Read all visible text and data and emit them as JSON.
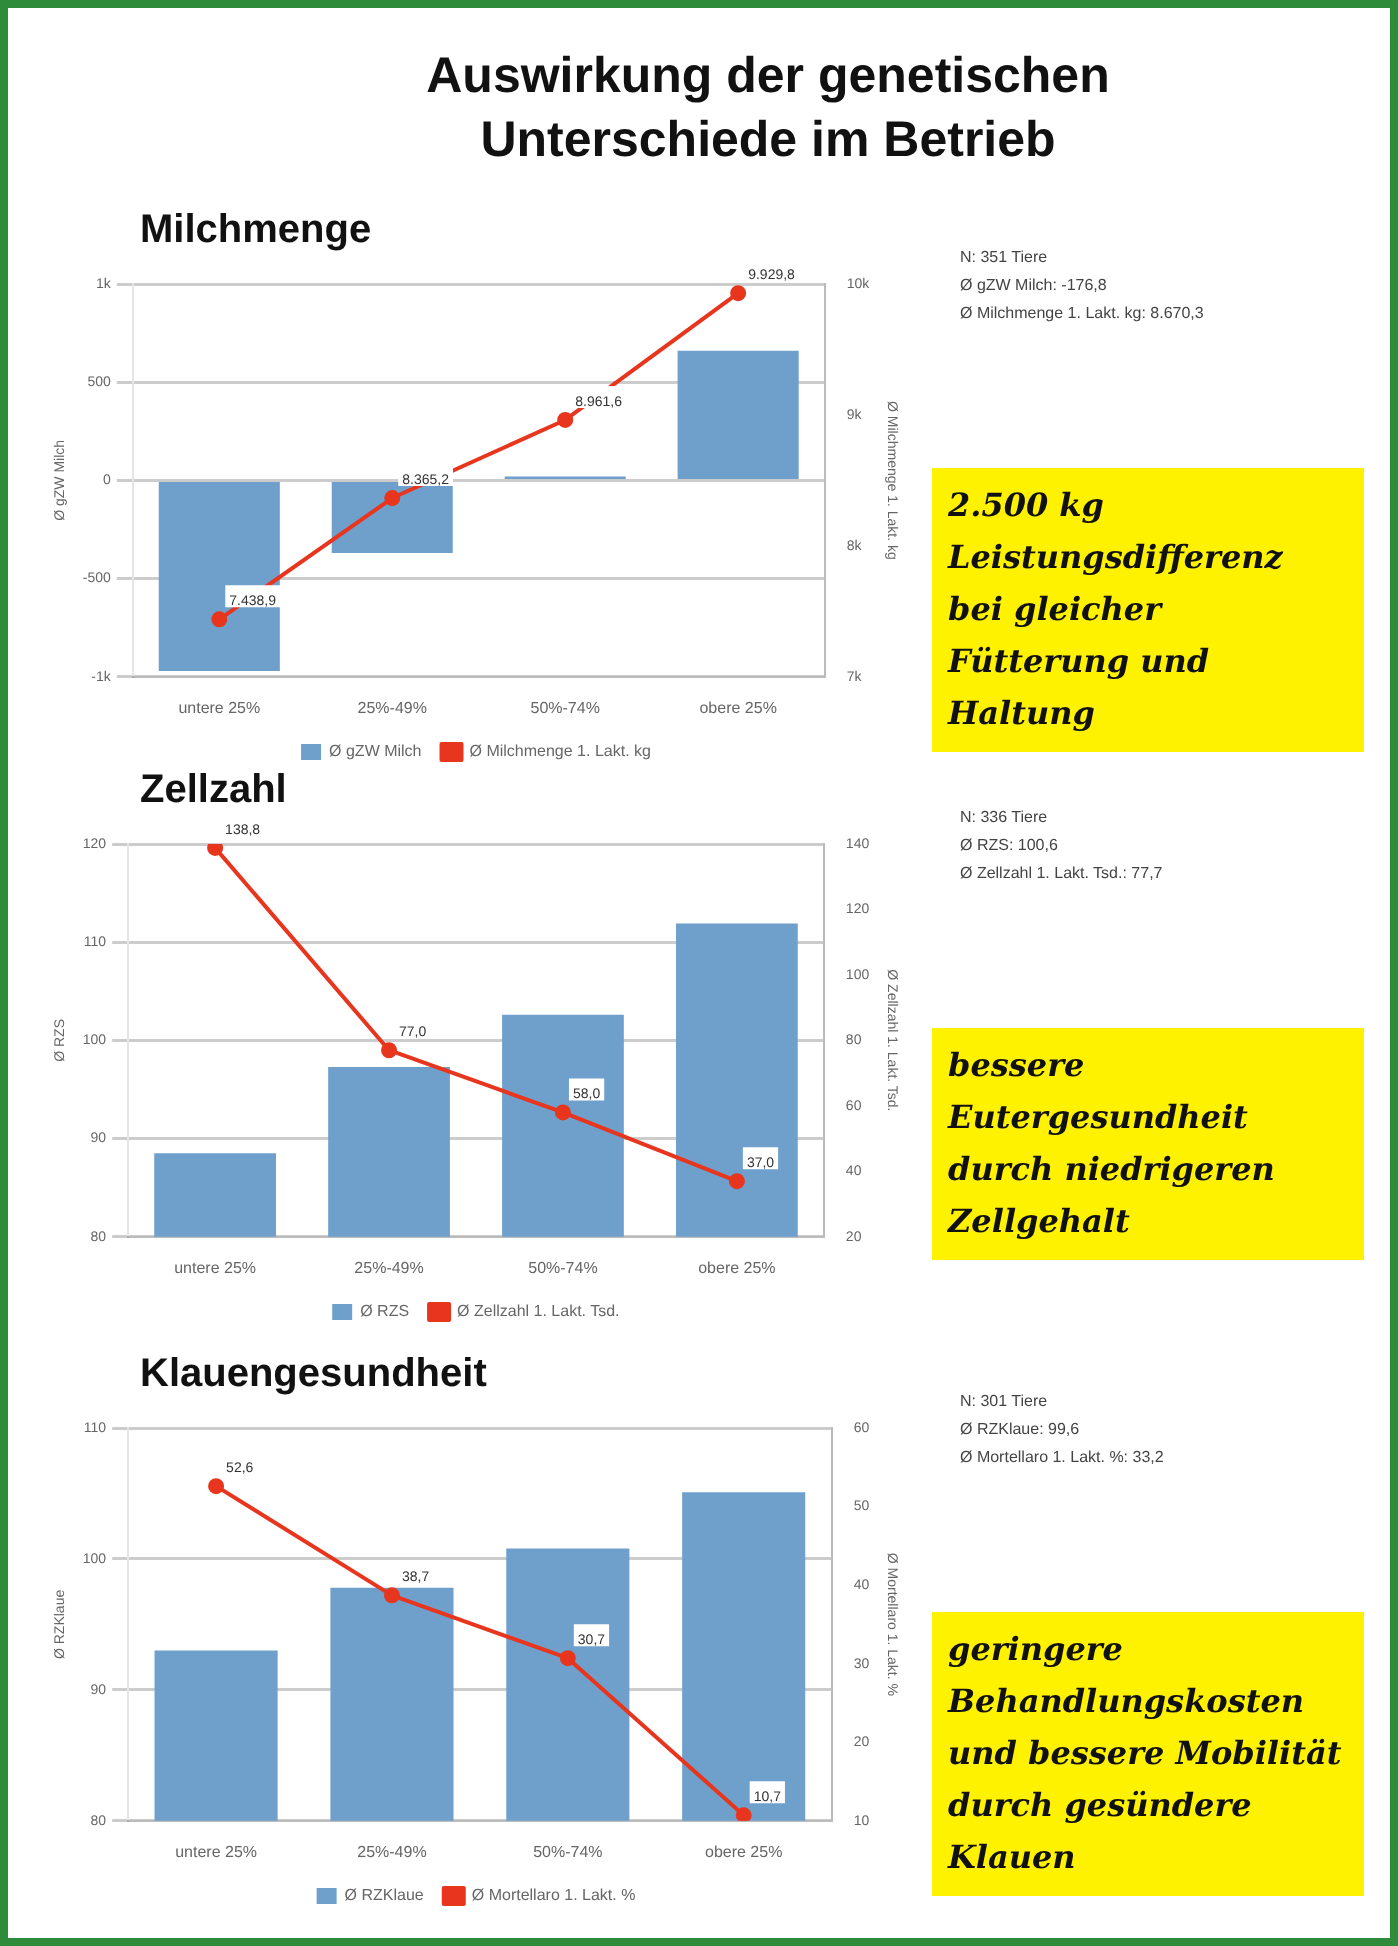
{
  "chart_data": [
    {
      "type": "bar",
      "title": "Auswirkung der genetischen Unterschiede im Betrieb",
      "subtitle": "Milchmenge",
      "ylabel": "Ø gZW Milch",
      "y2label": "Ø Milchmenge 1. Lakt. kg",
      "categories": [
        "untere 25%",
        "25%-49%",
        "50%-74%",
        "obere 25%"
      ],
      "series": [
        {
          "name": "Ø gZW Milch",
          "color": "#6fa0cc",
          "values": [
            -970,
            -370,
            20,
            660
          ]
        },
        {
          "name": "Ø Milchmenge 1. Lakt. kg",
          "type": "line",
          "axis": "y2",
          "color": "#e8351e",
          "values": [
            7438.9,
            8365.2,
            8961.6,
            9929.8
          ],
          "value_labels": [
            "7.438,9",
            "8.365,2",
            "8.961,6",
            "9.929,8"
          ]
        }
      ],
      "ylim": [
        -1000,
        1000
      ],
      "yticks": [
        {
          "value": -1000,
          "label": "-1k"
        },
        -500,
        0,
        500,
        {
          "value": 1000,
          "label": "1k"
        }
      ],
      "y2lim": [
        7000,
        10000
      ],
      "y2ticks": [
        {
          "value": 7000,
          "label": "7k"
        },
        {
          "value": 8000,
          "label": "8k"
        },
        {
          "value": 9000,
          "label": "9k"
        },
        {
          "value": 10000,
          "label": "10k"
        }
      ],
      "grid": "y",
      "legend": "bottom",
      "marker": "circle",
      "annotations": [
        "N: 351 Tiere",
        "Ø gZW Milch: -176,8",
        "Ø Milchmenge 1. Lakt. kg: 8.670,3",
        "2.500 kg Leistungsdifferenz bei gleicher Fütterung und Haltung"
      ]
    },
    {
      "type": "bar",
      "title": "Zellzahl",
      "ylabel": "Ø RZS",
      "y2label": "Ø Zellzahl 1. Lakt. Tsd.",
      "categories": [
        "untere 25%",
        "25%-49%",
        "50%-74%",
        "obere 25%"
      ],
      "series": [
        {
          "name": "Ø RZS",
          "color": "#6fa0cc",
          "values": [
            88.5,
            97.3,
            102.6,
            111.9
          ]
        },
        {
          "name": "Ø Zellzahl 1. Lakt. Tsd.",
          "type": "line",
          "axis": "y2",
          "color": "#e8351e",
          "values": [
            138.8,
            77.0,
            58.0,
            37.0
          ],
          "value_labels": [
            "138,8",
            "77,0",
            "58,0",
            "37,0"
          ]
        }
      ],
      "ylim": [
        80,
        120
      ],
      "yticks": [
        80,
        90,
        100,
        110,
        120
      ],
      "y2lim": [
        20,
        140
      ],
      "y2ticks": [
        20,
        40,
        60,
        80,
        100,
        120,
        140
      ],
      "grid": "y",
      "legend": "bottom",
      "marker": "circle",
      "annotations": [
        "N: 336 Tiere",
        "Ø RZS: 100,6",
        "Ø Zellzahl 1. Lakt. Tsd.: 77,7",
        "bessere Eutergesundheit durch niedrigeren Zellgehalt"
      ]
    },
    {
      "type": "bar",
      "title": "Klauengesundheit",
      "ylabel": "Ø RZKlaue",
      "y2label": "Ø Mortellaro 1. Lakt. %",
      "categories": [
        "untere 25%",
        "25%-49%",
        "50%-74%",
        "obere 25%"
      ],
      "series": [
        {
          "name": "Ø RZKlaue",
          "color": "#6fa0cc",
          "values": [
            93.0,
            97.8,
            100.8,
            105.1
          ]
        },
        {
          "name": "Ø Mortellaro 1. Lakt. %",
          "type": "line",
          "axis": "y2",
          "color": "#e8351e",
          "values": [
            52.6,
            38.7,
            30.7,
            10.7
          ],
          "value_labels": [
            "52,6",
            "38,7",
            "30,7",
            "10,7"
          ]
        }
      ],
      "ylim": [
        80,
        110
      ],
      "yticks": [
        80,
        90,
        100,
        110
      ],
      "y2lim": [
        10,
        60
      ],
      "y2ticks": [
        10,
        20,
        30,
        40,
        50,
        60
      ],
      "grid": "y",
      "legend": "bottom",
      "marker": "circle",
      "annotations": [
        "N: 301 Tiere",
        "Ø RZKlaue: 99,6",
        "Ø Mortellaro 1. Lakt. %: 33,2",
        "geringere Behandlungskosten und bessere Mobilität durch gesündere Klauen"
      ]
    }
  ]
}
